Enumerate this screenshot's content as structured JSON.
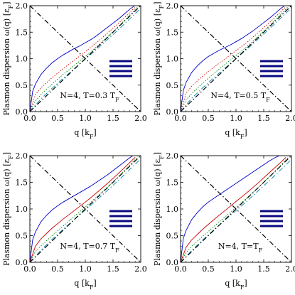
{
  "figure": {
    "ylabel": "Plasmon dispersion ω(q) [ε",
    "ylabel_sub": "F",
    "ylabel_end": "]",
    "xlabel": "q [k",
    "xlabel_sub": "F",
    "xlabel_end": "]"
  },
  "chart_data": [
    {
      "type": "line",
      "annotation": "N=4, T=0.3 T",
      "annotation_sub": "F",
      "xlim": [
        0,
        2.0
      ],
      "ylim": [
        0,
        2.0
      ],
      "xticks": [
        "0.0",
        "0.5",
        "1.0",
        "1.5",
        "2.0"
      ],
      "yticks": [
        "0.0",
        "0.5",
        "1.0",
        "1.5",
        "2.0"
      ],
      "series": [
        {
          "color": "#0000cc",
          "style": "solid",
          "x": [
            0,
            0.05,
            0.1,
            0.2,
            0.3,
            0.4,
            0.5,
            0.6,
            0.7,
            0.8,
            0.9,
            1.0,
            1.1,
            1.2,
            1.3,
            1.4,
            1.5,
            1.6,
            1.7,
            1.8,
            1.9
          ],
          "y": [
            0,
            0.38,
            0.52,
            0.7,
            0.82,
            0.92,
            1.0,
            1.07,
            1.13,
            1.19,
            1.24,
            1.3,
            1.36,
            1.43,
            1.51,
            1.59,
            1.67,
            1.75,
            1.84,
            1.93,
            2.01
          ]
        },
        {
          "color": "#cc0000",
          "style": "dotted",
          "x": [
            0,
            0.1,
            0.2,
            0.4,
            0.6,
            0.8,
            1.0,
            1.2,
            1.4,
            1.6,
            1.8,
            1.9
          ],
          "y": [
            0,
            0.32,
            0.45,
            0.64,
            0.81,
            0.97,
            1.13,
            1.3,
            1.48,
            1.67,
            1.87,
            1.97
          ]
        },
        {
          "color": "#008800",
          "style": "dotted",
          "x": [
            0,
            0.1,
            0.2,
            0.4,
            0.6,
            0.8,
            1.0,
            1.2,
            1.4,
            1.6,
            1.8,
            1.95
          ],
          "y": [
            0,
            0.2,
            0.32,
            0.52,
            0.7,
            0.87,
            1.04,
            1.22,
            1.41,
            1.61,
            1.82,
            1.98
          ]
        },
        {
          "color": "#0088aa",
          "style": "dashdot",
          "x": [
            0,
            0.2,
            0.4,
            0.6,
            0.8,
            1.0,
            1.2,
            1.4,
            1.6,
            1.8,
            2.0
          ],
          "y": [
            0,
            0.24,
            0.44,
            0.63,
            0.81,
            0.99,
            1.17,
            1.36,
            1.55,
            1.75,
            1.95
          ]
        },
        {
          "color": "#000000",
          "style": "dashdot",
          "x": [
            0,
            2.0
          ],
          "y": [
            0,
            2.0
          ]
        },
        {
          "color": "#000000",
          "style": "dashdot",
          "x": [
            0,
            2.0
          ],
          "y": [
            2.0,
            0
          ]
        }
      ]
    },
    {
      "type": "line",
      "annotation": "N=4, T=0.5 T",
      "annotation_sub": "F",
      "xlim": [
        0,
        2.0
      ],
      "ylim": [
        0,
        2.0
      ],
      "xticks": [
        "0.0",
        "0.5",
        "1.0",
        "1.5",
        "2.0"
      ],
      "yticks": [
        "0.0",
        "0.5",
        "1.0",
        "1.5",
        "2.0"
      ],
      "series": [
        {
          "color": "#0000cc",
          "style": "solid",
          "x": [
            0,
            0.05,
            0.1,
            0.2,
            0.3,
            0.4,
            0.5,
            0.6,
            0.7,
            0.8,
            0.9,
            1.0,
            1.1,
            1.2,
            1.3,
            1.4,
            1.5,
            1.6,
            1.7,
            1.8,
            1.9
          ],
          "y": [
            0,
            0.4,
            0.55,
            0.74,
            0.86,
            0.96,
            1.04,
            1.1,
            1.16,
            1.21,
            1.26,
            1.32,
            1.38,
            1.45,
            1.52,
            1.6,
            1.68,
            1.76,
            1.85,
            1.94,
            2.02
          ]
        },
        {
          "color": "#cc0000",
          "style": "dotted",
          "x": [
            0,
            0.1,
            0.2,
            0.4,
            0.6,
            0.8,
            1.0,
            1.2,
            1.4,
            1.6,
            1.8,
            1.9
          ],
          "y": [
            0,
            0.35,
            0.48,
            0.67,
            0.84,
            0.99,
            1.15,
            1.31,
            1.49,
            1.68,
            1.88,
            1.98
          ]
        },
        {
          "color": "#008800",
          "style": "dotted",
          "x": [
            0,
            0.1,
            0.2,
            0.4,
            0.6,
            0.8,
            1.0,
            1.2,
            1.4,
            1.6,
            1.8,
            1.95
          ],
          "y": [
            0,
            0.22,
            0.34,
            0.54,
            0.72,
            0.89,
            1.06,
            1.23,
            1.42,
            1.62,
            1.83,
            1.99
          ]
        },
        {
          "color": "#0088aa",
          "style": "dashdot",
          "x": [
            0,
            0.2,
            0.4,
            0.6,
            0.8,
            1.0,
            1.2,
            1.4,
            1.6,
            1.8,
            2.0
          ],
          "y": [
            0,
            0.25,
            0.45,
            0.64,
            0.82,
            1.0,
            1.18,
            1.37,
            1.56,
            1.76,
            1.96
          ]
        },
        {
          "color": "#000000",
          "style": "dashdot",
          "x": [
            0,
            2.0
          ],
          "y": [
            0,
            2.0
          ]
        },
        {
          "color": "#000000",
          "style": "dashdot",
          "x": [
            0,
            2.0
          ],
          "y": [
            2.0,
            0
          ]
        }
      ]
    },
    {
      "type": "line",
      "annotation": "N=4, T=0.7 T",
      "annotation_sub": "F",
      "xlim": [
        0,
        2.0
      ],
      "ylim": [
        0,
        2.0
      ],
      "xticks": [
        "0.0",
        "0.5",
        "1.0",
        "1.5",
        "2.0"
      ],
      "yticks": [
        "0.0",
        "0.5",
        "1.0",
        "1.5",
        "2.0"
      ],
      "series": [
        {
          "color": "#0000cc",
          "style": "solid",
          "x": [
            0,
            0.05,
            0.1,
            0.2,
            0.3,
            0.4,
            0.5,
            0.6,
            0.7,
            0.8,
            0.9,
            1.0,
            1.1,
            1.2,
            1.3,
            1.4,
            1.5,
            1.6,
            1.7,
            1.8,
            1.9
          ],
          "y": [
            0,
            0.42,
            0.57,
            0.76,
            0.88,
            0.98,
            1.06,
            1.13,
            1.19,
            1.25,
            1.31,
            1.37,
            1.43,
            1.5,
            1.57,
            1.64,
            1.72,
            1.8,
            1.88,
            1.96,
            2.03
          ]
        },
        {
          "color": "#cc0000",
          "style": "solid",
          "x": [
            0,
            0.1,
            0.2,
            0.4,
            0.6,
            0.8,
            1.0,
            1.2,
            1.4,
            1.6,
            1.8,
            1.9
          ],
          "y": [
            0,
            0.3,
            0.44,
            0.64,
            0.81,
            0.97,
            1.13,
            1.3,
            1.48,
            1.67,
            1.87,
            1.97
          ]
        },
        {
          "color": "#008800",
          "style": "dotted",
          "x": [
            0,
            0.1,
            0.2,
            0.4,
            0.6,
            0.8,
            1.0,
            1.2,
            1.4,
            1.6,
            1.8,
            1.95
          ],
          "y": [
            0,
            0.2,
            0.31,
            0.5,
            0.68,
            0.86,
            1.04,
            1.22,
            1.41,
            1.61,
            1.82,
            1.98
          ]
        },
        {
          "color": "#0088aa",
          "style": "dashdot",
          "x": [
            0,
            0.2,
            0.4,
            0.6,
            0.8,
            1.0,
            1.2,
            1.4,
            1.6,
            1.8,
            2.0
          ],
          "y": [
            0,
            0.23,
            0.43,
            0.62,
            0.8,
            0.98,
            1.16,
            1.35,
            1.54,
            1.74,
            1.94
          ]
        },
        {
          "color": "#000000",
          "style": "dashdot",
          "x": [
            0,
            2.0
          ],
          "y": [
            0,
            2.0
          ]
        },
        {
          "color": "#000000",
          "style": "dashdot",
          "x": [
            0,
            2.0
          ],
          "y": [
            2.0,
            0
          ]
        }
      ]
    },
    {
      "type": "line",
      "annotation": "N=4, T=T",
      "annotation_sub": "F",
      "xlim": [
        0,
        2.0
      ],
      "ylim": [
        0,
        2.0
      ],
      "xticks": [
        "0.0",
        "0.5",
        "1.0",
        "1.5",
        "2.0"
      ],
      "yticks": [
        "0.0",
        "0.5",
        "1.0",
        "1.5",
        "2.0"
      ],
      "series": [
        {
          "color": "#0000cc",
          "style": "solid",
          "x": [
            0,
            0.05,
            0.1,
            0.2,
            0.3,
            0.4,
            0.5,
            0.6,
            0.7,
            0.8,
            0.9,
            1.0,
            1.1,
            1.2,
            1.3,
            1.4,
            1.5,
            1.6,
            1.7,
            1.8,
            1.9
          ],
          "y": [
            0,
            0.45,
            0.6,
            0.8,
            0.93,
            1.04,
            1.13,
            1.2,
            1.27,
            1.34,
            1.41,
            1.48,
            1.55,
            1.62,
            1.69,
            1.76,
            1.83,
            1.9,
            1.96,
            2.01,
            2.05
          ]
        },
        {
          "color": "#cc0000",
          "style": "solid",
          "x": [
            0,
            0.1,
            0.2,
            0.4,
            0.6,
            0.8,
            1.0,
            1.2,
            1.4,
            1.6,
            1.8,
            1.9
          ],
          "y": [
            0,
            0.28,
            0.42,
            0.62,
            0.8,
            0.97,
            1.14,
            1.31,
            1.49,
            1.68,
            1.87,
            1.97
          ]
        },
        {
          "color": "#008800",
          "style": "dotted",
          "x": [
            0,
            0.1,
            0.2,
            0.4,
            0.6,
            0.8,
            1.0,
            1.2,
            1.4,
            1.6,
            1.8,
            1.95
          ],
          "y": [
            0,
            0.18,
            0.3,
            0.49,
            0.67,
            0.85,
            1.03,
            1.21,
            1.4,
            1.6,
            1.81,
            1.98
          ]
        },
        {
          "color": "#0088aa",
          "style": "dashdot",
          "x": [
            0,
            0.2,
            0.4,
            0.6,
            0.8,
            1.0,
            1.2,
            1.4,
            1.6,
            1.8,
            2.0
          ],
          "y": [
            0,
            0.22,
            0.42,
            0.61,
            0.79,
            0.97,
            1.15,
            1.34,
            1.53,
            1.73,
            1.93
          ]
        },
        {
          "color": "#000000",
          "style": "dashdot",
          "x": [
            0,
            2.0
          ],
          "y": [
            0,
            2.0
          ]
        },
        {
          "color": "#000000",
          "style": "dashdot",
          "x": [
            0,
            2.0
          ],
          "y": [
            2.0,
            0
          ]
        }
      ]
    }
  ]
}
